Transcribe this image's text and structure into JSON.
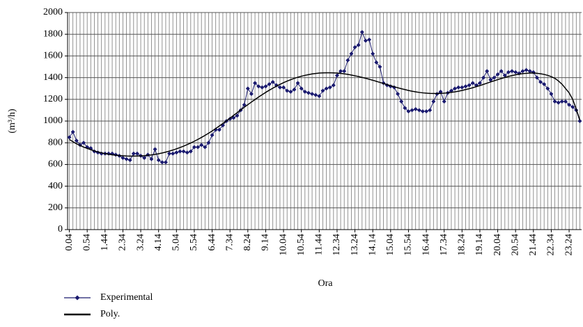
{
  "chart_data": {
    "type": "line",
    "y_label": "(m³/h)",
    "x_label": "Ora",
    "categories": [
      "0.04",
      null,
      null,
      null,
      null,
      "0.54",
      null,
      null,
      null,
      null,
      "1.44",
      null,
      null,
      null,
      null,
      "2.34",
      null,
      null,
      null,
      null,
      "3.24",
      null,
      null,
      null,
      null,
      "4.14",
      null,
      null,
      null,
      null,
      "5.04",
      null,
      null,
      null,
      null,
      "5.54",
      null,
      null,
      null,
      null,
      "6.44",
      null,
      null,
      null,
      null,
      "7.34",
      null,
      null,
      null,
      null,
      "8.24",
      null,
      null,
      null,
      null,
      "9.14",
      null,
      null,
      null,
      null,
      "10.04",
      null,
      null,
      null,
      null,
      "10.54",
      null,
      null,
      null,
      null,
      "11.44",
      null,
      null,
      null,
      null,
      "12.34",
      null,
      null,
      null,
      null,
      "13.24",
      null,
      null,
      null,
      null,
      "14.14",
      null,
      null,
      null,
      null,
      "15.04",
      null,
      null,
      null,
      null,
      "15.54",
      null,
      null,
      null,
      null,
      "16.44",
      null,
      null,
      null,
      null,
      "17.34",
      null,
      null,
      null,
      null,
      "18.24",
      null,
      null,
      null,
      null,
      "19.14",
      null,
      null,
      null,
      null,
      "20.04",
      null,
      null,
      null,
      null,
      "20.54",
      null,
      null,
      null,
      null,
      "21.44",
      null,
      null,
      null,
      null,
      "22.34",
      null,
      null,
      null,
      null,
      "23.24",
      null,
      null,
      null
    ],
    "series": [
      {
        "name": "Experimental",
        "color": "#1a1a6e",
        "marker": "diamond",
        "values": [
          850,
          900,
          820,
          780,
          800,
          760,
          750,
          720,
          710,
          700,
          700,
          700,
          700,
          690,
          680,
          660,
          650,
          640,
          700,
          700,
          680,
          660,
          690,
          650,
          740,
          640,
          620,
          620,
          700,
          700,
          710,
          720,
          720,
          710,
          720,
          760,
          760,
          780,
          760,
          800,
          870,
          920,
          920,
          960,
          1000,
          1020,
          1030,
          1050,
          1100,
          1150,
          1300,
          1250,
          1350,
          1320,
          1310,
          1320,
          1340,
          1360,
          1330,
          1310,
          1310,
          1280,
          1270,
          1290,
          1350,
          1300,
          1270,
          1260,
          1250,
          1240,
          1230,
          1280,
          1300,
          1310,
          1330,
          1420,
          1460,
          1460,
          1560,
          1620,
          1680,
          1700,
          1820,
          1740,
          1750,
          1620,
          1540,
          1500,
          1350,
          1330,
          1320,
          1310,
          1250,
          1180,
          1120,
          1090,
          1100,
          1110,
          1100,
          1090,
          1090,
          1100,
          1180,
          1250,
          1270,
          1180,
          1260,
          1280,
          1300,
          1310,
          1310,
          1320,
          1330,
          1350,
          1330,
          1350,
          1400,
          1460,
          1380,
          1400,
          1430,
          1460,
          1420,
          1450,
          1460,
          1450,
          1440,
          1460,
          1470,
          1460,
          1450,
          1400,
          1360,
          1340,
          1300,
          1250,
          1180,
          1170,
          1180,
          1180,
          1150,
          1130,
          1100,
          1000
        ]
      },
      {
        "name": "Poly.",
        "color": "#000000",
        "marker": "none",
        "values": [
          830,
          810,
          790,
          775,
          760,
          748,
          736,
          725,
          716,
          708,
          700,
          694,
          689,
          685,
          682,
          680,
          678,
          677,
          677,
          678,
          679,
          681,
          684,
          688,
          693,
          699,
          706,
          714,
          723,
          733,
          744,
          756,
          769,
          783,
          798,
          814,
          831,
          849,
          868,
          888,
          909,
          931,
          954,
          978,
          1002,
          1027,
          1052,
          1077,
          1102,
          1127,
          1151,
          1175,
          1198,
          1221,
          1243,
          1264,
          1284,
          1303,
          1321,
          1338,
          1354,
          1368,
          1381,
          1393,
          1404,
          1413,
          1421,
          1428,
          1434,
          1438,
          1442,
          1444,
          1445,
          1445,
          1444,
          1442,
          1439,
          1435,
          1430,
          1424,
          1417,
          1410,
          1402,
          1394,
          1385,
          1376,
          1366,
          1356,
          1346,
          1336,
          1326,
          1316,
          1307,
          1298,
          1290,
          1282,
          1275,
          1269,
          1264,
          1260,
          1257,
          1255,
          1254,
          1254,
          1255,
          1257,
          1260,
          1264,
          1269,
          1275,
          1282,
          1290,
          1298,
          1307,
          1317,
          1327,
          1338,
          1349,
          1360,
          1371,
          1382,
          1392,
          1402,
          1411,
          1419,
          1426,
          1432,
          1437,
          1440,
          1442,
          1442,
          1440,
          1436,
          1430,
          1421,
          1409,
          1394,
          1370,
          1340,
          1300,
          1260,
          1200,
          1110,
          1010
        ]
      }
    ],
    "ylim": [
      0,
      2000
    ],
    "yticks": [
      0,
      200,
      400,
      600,
      800,
      1000,
      1200,
      1400,
      1600,
      1800,
      2000
    ],
    "grid": true,
    "legend": "bottom-left"
  }
}
